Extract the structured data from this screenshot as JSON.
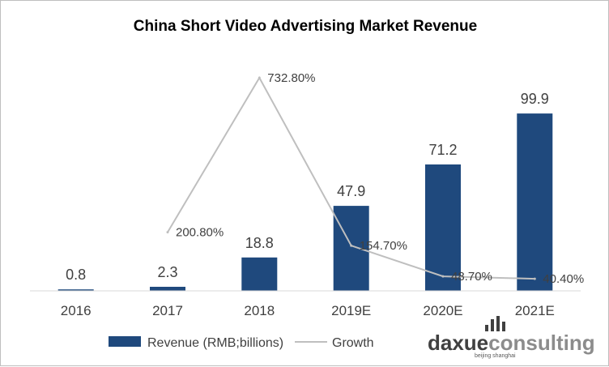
{
  "chart_data": {
    "type": "bar",
    "title": "China Short Video Advertising Market Revenue",
    "categories": [
      "2016",
      "2017",
      "2018",
      "2019E",
      "2020E",
      "2021E"
    ],
    "series": [
      {
        "name": "Revenue (RMB;billions)",
        "kind": "bar",
        "values": [
          0.8,
          2.3,
          18.8,
          47.9,
          71.2,
          99.9
        ],
        "labels": [
          "0.8",
          "2.3",
          "18.8",
          "47.9",
          "71.2",
          "99.9"
        ],
        "color": "#1f497d"
      },
      {
        "name": "Growth",
        "kind": "line",
        "x": [
          "2017",
          "2018",
          "2019E",
          "2020E",
          "2021E"
        ],
        "values": [
          200.8,
          732.8,
          154.7,
          48.7,
          40.4
        ],
        "labels": [
          "200.80%",
          "732.80%",
          "154.70%",
          "48.70%",
          "40.40%"
        ],
        "color": "#bfbfbf"
      }
    ],
    "axes": {
      "bar_ylim": [
        0,
        110
      ],
      "growth_ylim": [
        -20,
        820
      ],
      "y_ticks_visible": false
    },
    "grid": false,
    "legend_position": "bottom-left"
  },
  "watermark": {
    "part1": "daxue",
    "part2": "consulting",
    "sub": "beijing shanghai"
  }
}
